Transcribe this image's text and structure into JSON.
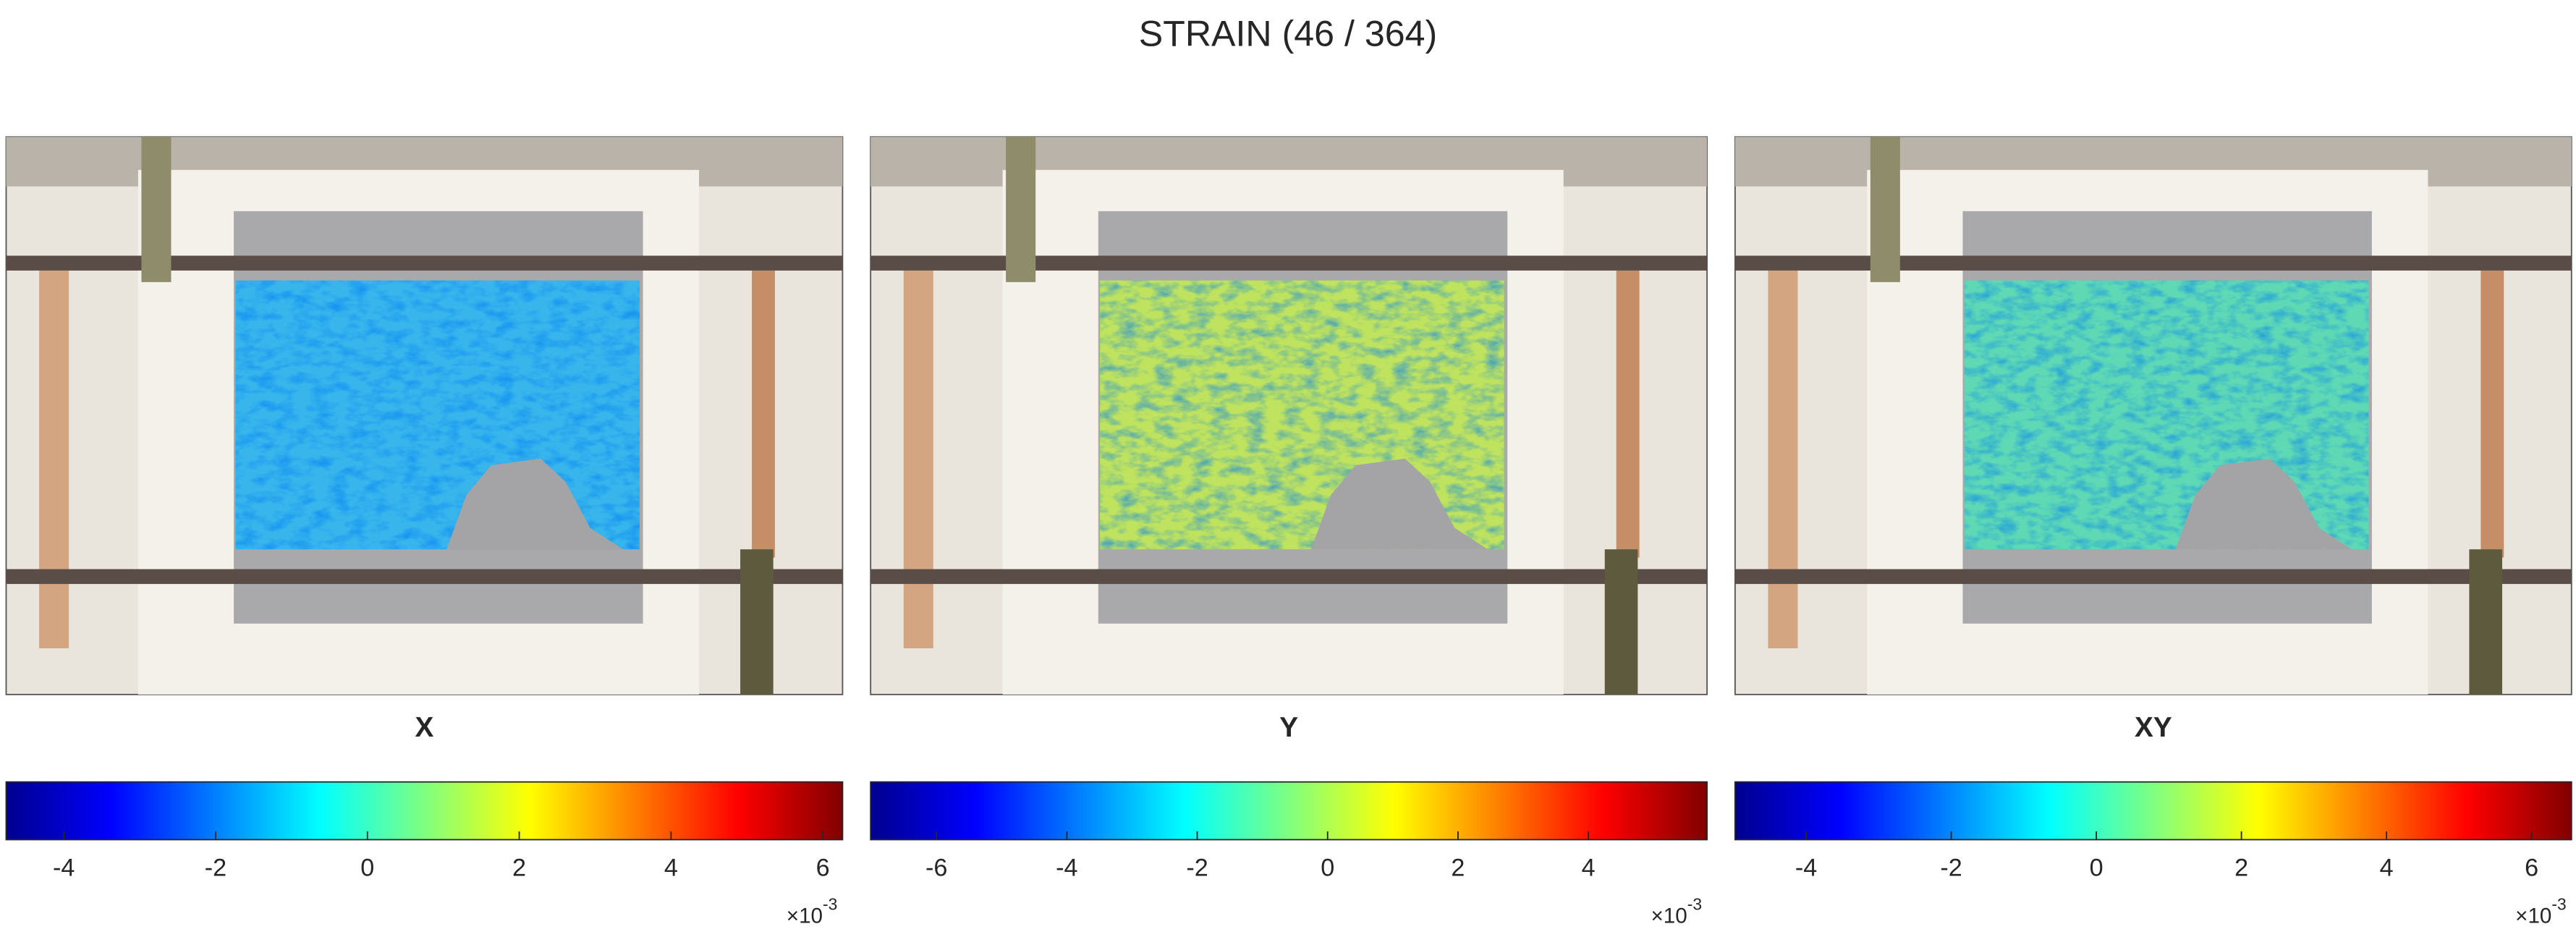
{
  "title": "STRAIN (46 / 364)",
  "chart_data": [
    {
      "type": "heatmap",
      "title": "X",
      "colormap": "jet",
      "clim": [
        -4.76,
        6.26
      ],
      "cticks": [
        -4,
        -2,
        0,
        2,
        4,
        6
      ],
      "multiplier": "×10",
      "multiplier_exponent": "-3"
    },
    {
      "type": "heatmap",
      "title": "Y",
      "colormap": "jet",
      "clim": [
        -7.01,
        5.82
      ],
      "cticks": [
        -6,
        -4,
        -2,
        0,
        2,
        4
      ],
      "multiplier": "×10",
      "multiplier_exponent": "-3"
    },
    {
      "type": "heatmap",
      "title": "XY",
      "colormap": "jet",
      "clim": [
        -4.98,
        6.55
      ],
      "cticks": [
        -4,
        -2,
        0,
        2,
        4,
        6
      ],
      "multiplier": "×10",
      "multiplier_exponent": "-3"
    }
  ]
}
